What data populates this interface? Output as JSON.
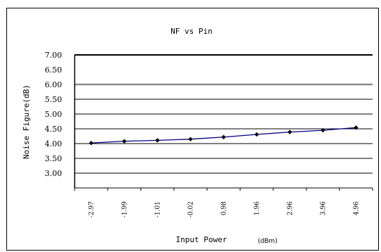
{
  "chart_data": {
    "type": "line",
    "title": "NF  vs Pin",
    "xlabel": "Input Power",
    "xunit": "(dBm)",
    "ylabel": "Noise Figure(dB)",
    "categories": [
      "-2.97",
      "-1.99",
      "-1.01",
      "-0.02",
      "0.98",
      "1.96",
      "2.96",
      "3.96",
      "4.96"
    ],
    "series": [
      {
        "values": [
          4.02,
          4.08,
          4.11,
          4.15,
          4.22,
          4.31,
          4.39,
          4.45,
          4.54
        ],
        "color": "#000080"
      }
    ],
    "yticks": [
      "7.00",
      "6.50",
      "6.00",
      "5.50",
      "5.00",
      "4.50",
      "4.00",
      "3.50",
      "3.00"
    ],
    "gridlines": [
      6.0,
      5.5,
      5.0,
      4.5,
      4.0,
      3.5,
      3.0
    ],
    "highlight_gridline": 6.0,
    "ylim": [
      2.5,
      7.0
    ],
    "grid": true,
    "legend": "none"
  }
}
